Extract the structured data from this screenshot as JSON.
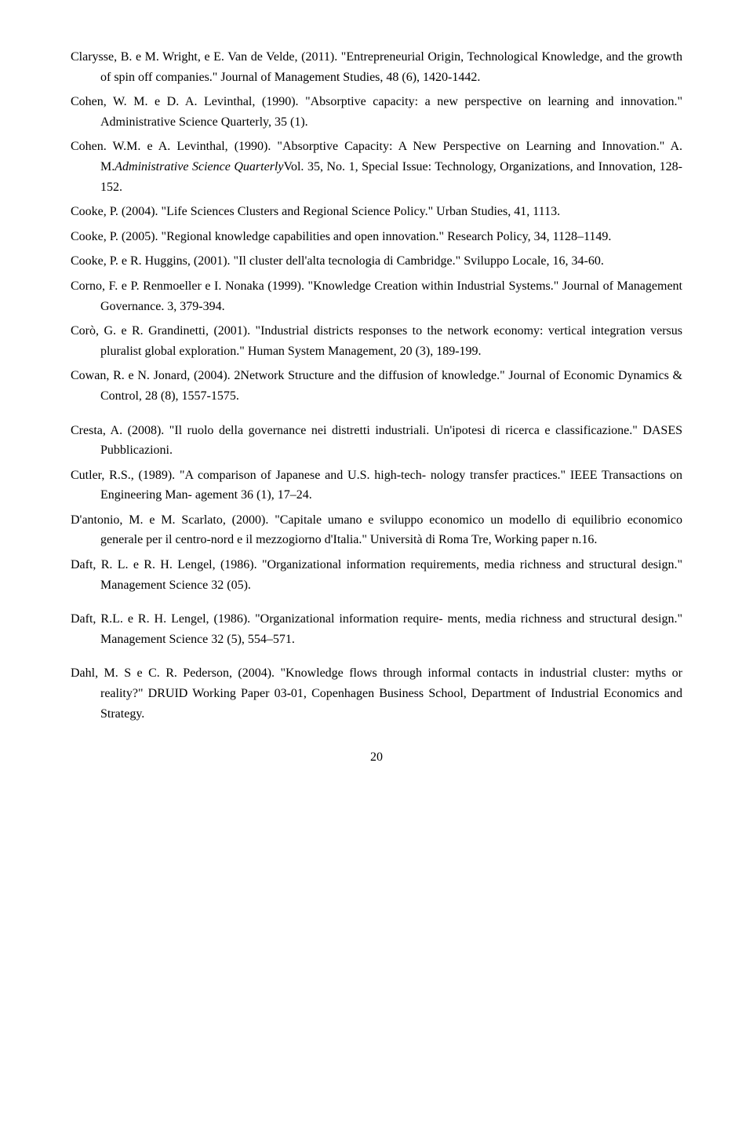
{
  "refs": [
    {
      "html": "Clarysse, B. e M. Wright, e E. Van de Velde, (2011). \"Entrepreneurial Origin, Technological Knowledge, and the growth of spin off companies.\" Journal of Management Studies, 48 (6), 1420-1442."
    },
    {
      "html": "Cohen, W. M. e D. A. Levinthal, (1990). \"Absorptive capacity: a new perspective on learning and innovation.\" Administrative Science Quarterly, 35 (1)."
    },
    {
      "html": "Cohen. W.M. e A. Levinthal, (1990). \"Absorptive Capacity: A New Perspective on Learning and Innovation.\" A. M.<span class=\"italic\">Administrative Science Quarterly</span>Vol. 35, No. 1, Special Issue: Technology, Organizations, and Innovation, 128-152."
    },
    {
      "html": "Cooke, P. (2004). \"Life Sciences Clusters and Regional Science Policy.\" Urban Studies, 41, 1113."
    },
    {
      "html": "Cooke, P. (2005). \"Regional knowledge capabilities and open innovation.\" Research Policy, 34, 1128–1149."
    },
    {
      "html": "Cooke, P. e R. Huggins, (2001). \"Il cluster dell'alta tecnologia di Cambridge.\" Sviluppo Locale, 16, 34-60."
    },
    {
      "html": "Corno, F. e P. Renmoeller e I. Nonaka (1999). \"Knowledge Creation within Industrial Systems.\" Journal of Management Governance. 3, 379-394."
    },
    {
      "html": "Corò, G. e R. Grandinetti, (2001). \"Industrial districts responses to the network economy: vertical integration versus pluralist global exploration.\" Human System Management, 20 (3), 189-199."
    },
    {
      "html": "Cowan, R. e N. Jonard, (2004). 2Network Structure and the diffusion of knowledge.\" Journal of Economic Dynamics & Control, 28 (8), 1557-1575."
    },
    {
      "html": "Cresta, A. (2008). \"Il ruolo della governance nei distretti industriali. Un'ipotesi di ricerca e classificazione.\" DASES Pubblicazioni.",
      "gap": true
    },
    {
      "html": "Cutler, R.S., (1989). \"A comparison of Japanese and U.S. high-tech- nology transfer practices.\" IEEE Transactions on Engineering Man- agement 36 (1), 17–24."
    },
    {
      "html": "D'antonio, M. e M. Scarlato, (2000). \"Capitale umano e sviluppo economico un modello di equilibrio economico generale per il centro-nord e il mezzogiorno d'Italia.\" Università di Roma Tre, Working paper n.16."
    },
    {
      "html": "Daft, R. L. e R. H. Lengel, (1986). \"Organizational information requirements, media richness and structural design.\" Management Science 32 (05)."
    },
    {
      "html": "Daft, R.L. e R. H. Lengel, (1986). \"Organizational information require- ments, media richness and structural design.\" Management Science 32 (5), 554–571.",
      "gap": true
    },
    {
      "html": "Dahl, M. S e C. R. Pederson, (2004). \"Knowledge flows through informal contacts in industrial cluster: myths or reality?\" DRUID Working Paper 03-01, Copenhagen Business School, Department of Industrial Economics and Strategy.",
      "gap": true
    }
  ],
  "pageNumber": "20"
}
